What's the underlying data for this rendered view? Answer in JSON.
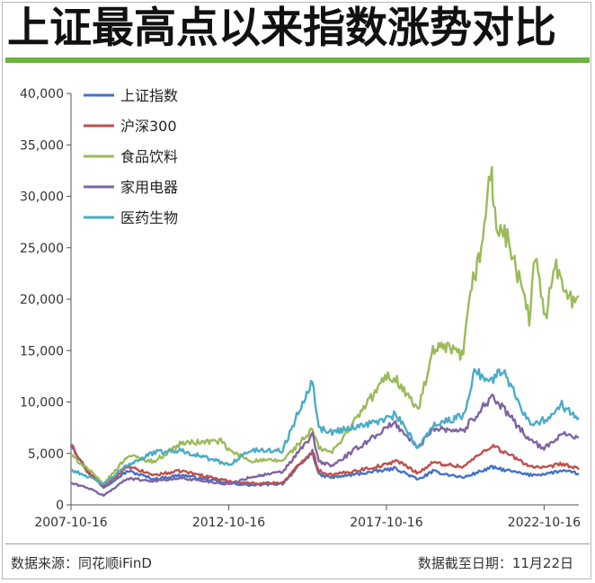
{
  "header": {
    "title": "上证最高点以来指数涨势对比"
  },
  "footer": {
    "source": "数据来源：同花顺iFinD",
    "cutoff": "数据截至日期：11月22日"
  },
  "chart_data": {
    "type": "line",
    "title": "上证最高点以来指数涨势对比",
    "xlabel": "",
    "ylabel": "",
    "ylim": [
      0,
      40000
    ],
    "yticks": [
      0,
      5000,
      10000,
      15000,
      20000,
      25000,
      30000,
      35000,
      40000
    ],
    "ytick_labels": [
      "0",
      "5,000",
      "10,000",
      "15,000",
      "20,000",
      "25,000",
      "30,000",
      "35,000",
      "40,000"
    ],
    "xlim": [
      "2007-10-16",
      "2023-11-22"
    ],
    "xticks": [
      "2007-10-16",
      "2012-10-16",
      "2017-10-16",
      "2022-10-16"
    ],
    "grid": false,
    "legend": "top-left",
    "series": [
      {
        "name": "上证指数",
        "color": "#4472c4",
        "x": [
          "2007-10-16",
          "2008-04-16",
          "2008-10-28",
          "2009-08-04",
          "2010-06-01",
          "2011-04-18",
          "2012-10-16",
          "2013-06-25",
          "2014-07-01",
          "2015-06-12",
          "2015-08-26",
          "2016-01-28",
          "2017-10-16",
          "2018-01-29",
          "2018-10-18",
          "2019-04-08",
          "2020-03-23",
          "2021-02-18",
          "2022-04-26",
          "2022-10-16",
          "2023-05-09",
          "2023-11-22"
        ],
        "values": [
          6000,
          3300,
          1700,
          3300,
          2500,
          2900,
          2100,
          1900,
          2050,
          5150,
          2900,
          2650,
          3400,
          3550,
          2450,
          3250,
          2650,
          3650,
          2900,
          3000,
          3300,
          3050
        ]
      },
      {
        "name": "沪深300",
        "color": "#c0504d",
        "x": [
          "2007-10-16",
          "2008-04-16",
          "2008-10-28",
          "2009-08-04",
          "2010-06-01",
          "2011-04-18",
          "2012-10-16",
          "2013-06-25",
          "2014-07-01",
          "2015-06-12",
          "2015-08-26",
          "2016-01-28",
          "2017-10-16",
          "2018-01-29",
          "2018-10-18",
          "2019-04-08",
          "2020-03-23",
          "2021-02-18",
          "2022-04-26",
          "2022-10-16",
          "2023-05-09",
          "2023-11-22"
        ],
        "values": [
          5800,
          3300,
          1800,
          3700,
          2900,
          3300,
          2300,
          2100,
          2150,
          5300,
          3300,
          2900,
          3900,
          4350,
          3100,
          4100,
          3700,
          5800,
          3800,
          3550,
          4000,
          3450
        ]
      },
      {
        "name": "食品饮料",
        "color": "#9bbb59",
        "x": [
          "2007-10-16",
          "2008-04-16",
          "2008-10-28",
          "2009-08-04",
          "2010-06-01",
          "2011-04-18",
          "2012-07-16",
          "2012-10-16",
          "2013-06-25",
          "2014-07-01",
          "2015-06-12",
          "2015-08-26",
          "2016-01-28",
          "2017-10-16",
          "2018-01-29",
          "2018-10-18",
          "2019-04-08",
          "2019-08-01",
          "2020-03-23",
          "2020-06-30",
          "2020-10-01",
          "2021-02-18",
          "2021-03-10",
          "2021-09-01",
          "2022-04-26",
          "2022-07-05",
          "2022-10-31",
          "2023-02-01",
          "2023-05-09",
          "2023-10-10",
          "2023-11-22"
        ],
        "values": [
          4800,
          3600,
          2000,
          4800,
          4200,
          6000,
          6200,
          5300,
          4300,
          4300,
          7300,
          5500,
          5100,
          12500,
          12300,
          9200,
          14800,
          15300,
          14500,
          21500,
          24000,
          33200,
          28000,
          25500,
          18200,
          24000,
          18000,
          23500,
          22000,
          19500,
          20300
        ]
      },
      {
        "name": "家用电器",
        "color": "#8064a2",
        "x": [
          "2007-10-16",
          "2008-04-16",
          "2008-10-28",
          "2009-08-04",
          "2010-06-01",
          "2011-04-18",
          "2012-10-16",
          "2013-06-25",
          "2014-07-01",
          "2015-06-12",
          "2015-08-26",
          "2016-01-28",
          "2017-10-16",
          "2018-01-29",
          "2018-10-18",
          "2019-04-08",
          "2020-03-23",
          "2021-02-18",
          "2022-04-26",
          "2022-10-16",
          "2023-05-09",
          "2023-11-22"
        ],
        "values": [
          2100,
          1700,
          900,
          2600,
          2300,
          2600,
          2000,
          2700,
          3200,
          6800,
          4200,
          3800,
          7500,
          7900,
          5500,
          7500,
          7200,
          10600,
          6400,
          5400,
          7000,
          6600
        ]
      },
      {
        "name": "医药生物",
        "color": "#4bacc6",
        "x": [
          "2007-10-16",
          "2008-04-16",
          "2008-10-28",
          "2009-08-04",
          "2010-06-01",
          "2011-04-18",
          "2012-10-16",
          "2013-06-25",
          "2014-07-01",
          "2015-06-12",
          "2015-08-26",
          "2016-01-28",
          "2017-10-16",
          "2018-01-29",
          "2018-10-18",
          "2019-04-08",
          "2020-03-23",
          "2020-08-01",
          "2021-02-18",
          "2021-07-01",
          "2022-04-26",
          "2022-10-16",
          "2023-05-09",
          "2023-11-22"
        ],
        "values": [
          3400,
          2800,
          2000,
          3900,
          5100,
          5300,
          3900,
          5300,
          5300,
          12300,
          7400,
          7100,
          8300,
          8800,
          5500,
          7800,
          8600,
          13000,
          12000,
          13200,
          8000,
          8200,
          9700,
          8500
        ]
      }
    ]
  }
}
